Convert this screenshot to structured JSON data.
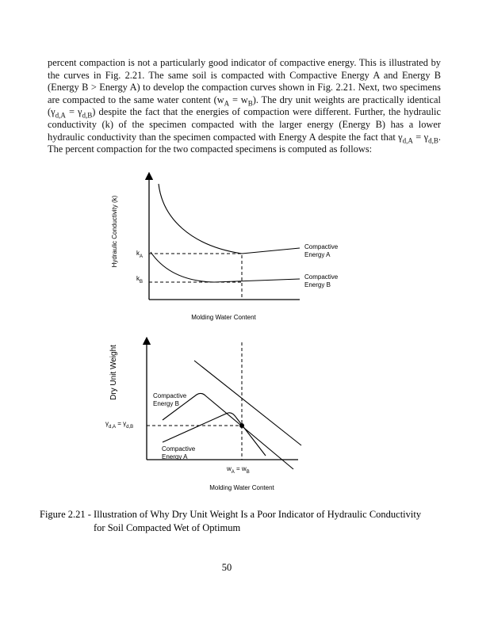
{
  "paragraph": [
    "percent compaction is not a particularly good indicator of compactive energy. This is illustrated by the curves in Fig. 2.21. The same soil is compacted with Compactive Energy A and Energy B (Energy B > Energy A) to develop the compaction curves shown in Fig. 2.21. Next, two specimens are compacted to the same water content (w",
    "A",
    " = w",
    "B",
    "). The dry unit weights are practically identical (γ",
    "d,A",
    " = γ",
    "d,B",
    ") despite the fact that the energies of compaction were different. Further, the hydraulic conductivity (k) of the specimen compacted with the larger energy (Energy B) has a lower hydraulic conductivity than the specimen compacted with Energy A despite the fact that γ",
    "d,A",
    " = γ",
    "d,B",
    ". The percent compaction for the two compacted specimens is computed as follows:"
  ],
  "figure_top": {
    "y_axis_label": "Hydraulic Conductivity (k)",
    "x_axis_label": "Molding Water Content",
    "k_a": [
      "k",
      "A"
    ],
    "k_b": [
      "k",
      "B"
    ],
    "curve_a_label": [
      "Compactive",
      "Energy A"
    ],
    "curve_b_label": [
      "Compactive",
      "Energy B"
    ]
  },
  "figure_bottom": {
    "y_axis_label": "Dry Unit Weight",
    "x_axis_label": "Molding Water Content",
    "gamma_label": [
      "γ",
      "d,A",
      " = γ",
      "d,B"
    ],
    "w_label": [
      "w",
      "A",
      " = w",
      "B"
    ],
    "curve_b_label": [
      "Compactive",
      "Energy B"
    ],
    "curve_a_label": [
      "Compactive",
      "Energy A"
    ]
  },
  "caption": [
    "Figure 2.21 - Illustration of Why Dry Unit Weight Is a Poor Indicator of Hydraulic Conductivity",
    "for Soil Compacted Wet of Optimum"
  ],
  "page_number": "50"
}
